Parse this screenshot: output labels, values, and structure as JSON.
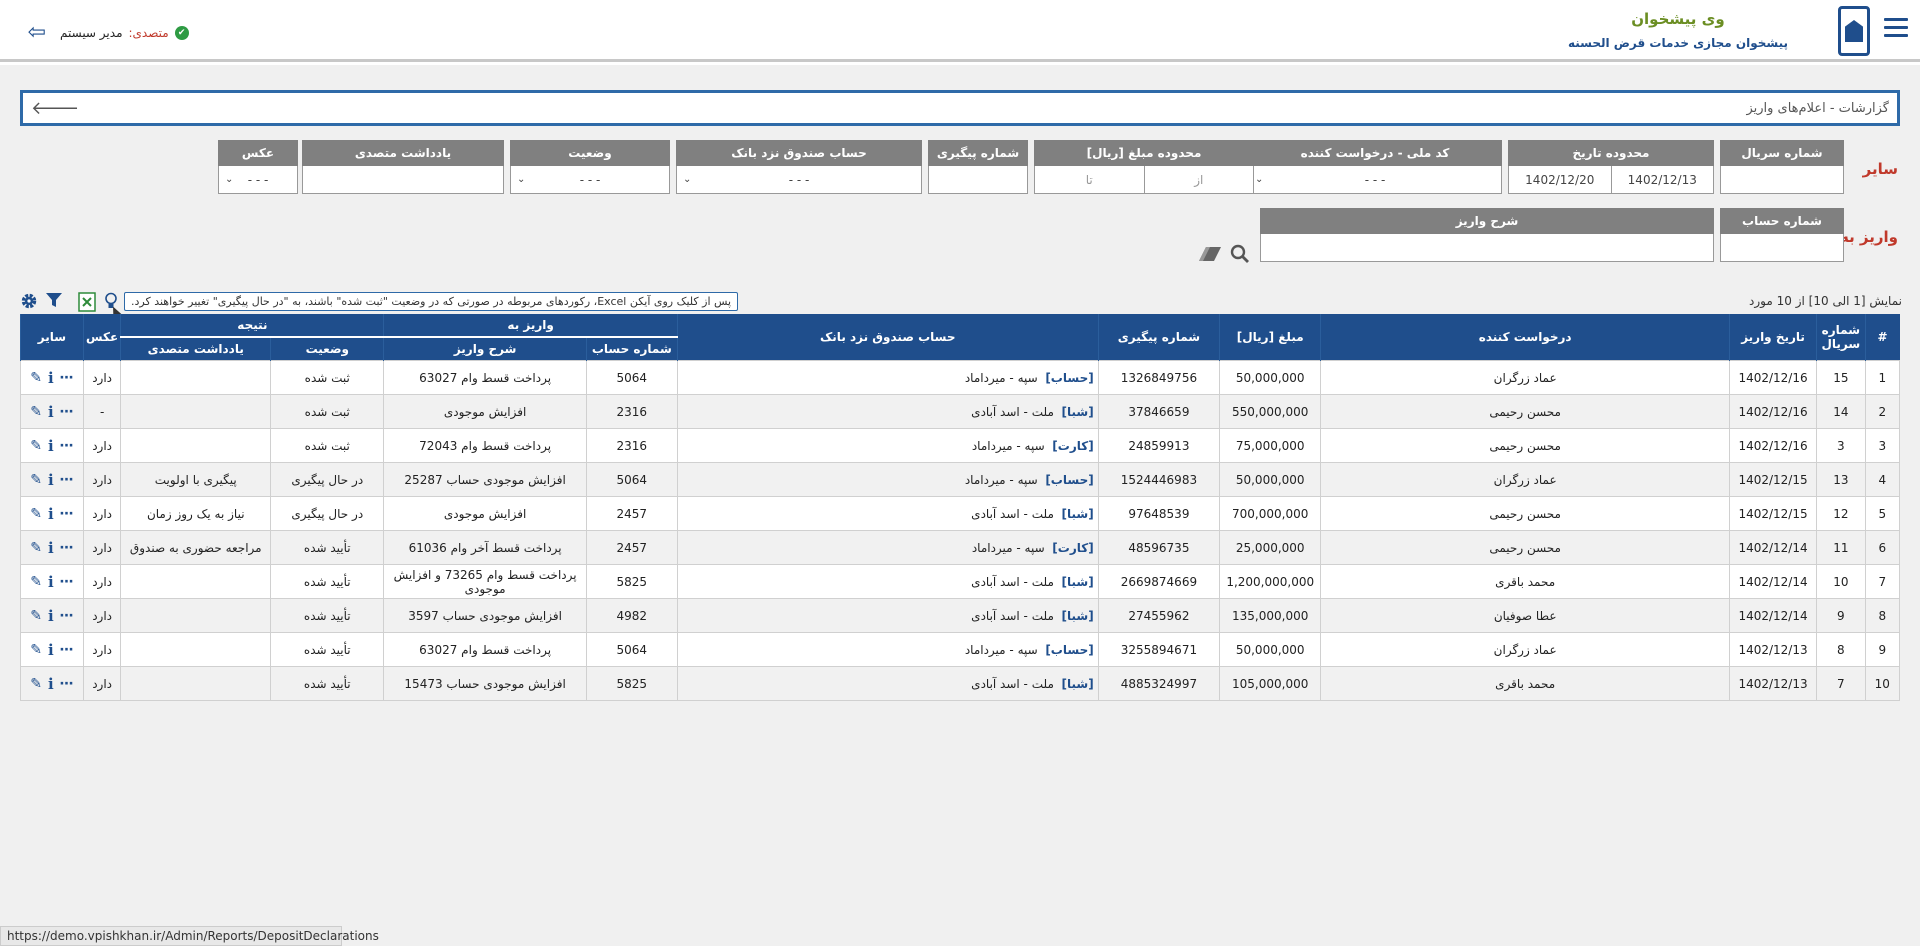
{
  "header": {
    "app_title": "وی پیشخوان",
    "app_subtitle": "پیشخوان مجازی خدمات قرض الحسنه",
    "user_label": "متصدی:",
    "user_name": "مدیر سیستم",
    "check_glyph": "✔",
    "logout_glyph": "⇦",
    "icons": {
      "menu": "hamburger-icon",
      "logo": "bank-phone-logo-icon",
      "logout": "logout-icon"
    }
  },
  "breadcrumb": {
    "text": "گزارشات - اعلام‌های واریز",
    "back_glyph": "🡐"
  },
  "filters": {
    "row1_label": "سایر",
    "row2_label": "واریز به",
    "serial": {
      "label": "شماره سریال",
      "value": ""
    },
    "date_range": {
      "label": "محدوده تاریخ",
      "from": "1402/12/13",
      "to": "1402/12/20"
    },
    "national_code": {
      "label": "کد ملی - درخواست کننده",
      "value": "- - -"
    },
    "amount_range": {
      "label": "محدوده مبلغ [ریال]",
      "from_placeholder": "از",
      "to_placeholder": "تا"
    },
    "tracking": {
      "label": "شماره پیگیری",
      "value": ""
    },
    "bank_account": {
      "label": "حساب صندوق نزد بانک",
      "value": "- - -"
    },
    "status": {
      "label": "وضعیت",
      "value": "- - -"
    },
    "note": {
      "label": "یادداشت متصدی",
      "value": ""
    },
    "photo": {
      "label": "عکس",
      "value": "- - -"
    },
    "account_number": {
      "label": "شماره حساب",
      "value": ""
    },
    "deposit_desc": {
      "label": "شرح واریز",
      "value": ""
    },
    "chevron": "⌄"
  },
  "tools": {
    "count_text": "نمایش [1 الی 10] از 10 مورد",
    "tooltip": "پس از کلیک روی آیکن Excel، رکوردهای مربوطه در صورتی که در وضعیت \"ثبت شده\" باشند، به \"در حال پیگیری\" تغییر خواهند کرد.",
    "icons": {
      "search": "search-icon",
      "eraser": "eraser-icon",
      "excel": "excel-icon",
      "bulb": "lightbulb-icon",
      "filter": "filter-icon",
      "settings": "gear-icon"
    }
  },
  "table": {
    "headers": {
      "hash": "#",
      "serial": "شماره سریال",
      "date": "تاریخ واریز",
      "requester": "درخواست کننده",
      "amount": "مبلغ [ریال]",
      "tracking": "شماره پیگیری",
      "bank": "حساب صندوق نزد بانک",
      "deposit_to": "واریز به",
      "account_no": "شماره حساب",
      "desc": "شرح واریز",
      "result": "نتیجه",
      "status": "وضعیت",
      "note": "یادداشت متصدی",
      "photo": "عکس",
      "other": "سایر"
    },
    "rows": [
      {
        "n": "1",
        "serial": "15",
        "date": "1402/12/16",
        "requester": "عماد زرگران",
        "amount": "50,000,000",
        "tracking": "1326849756",
        "tag": "[حساب]",
        "bank": "سپه - میرداماد",
        "acc": "5064",
        "desc": "پرداخت قسط وام 63027",
        "status": "ثبت شده",
        "note": "",
        "photo": "دارد"
      },
      {
        "n": "2",
        "serial": "14",
        "date": "1402/12/16",
        "requester": "محسن رحیمی",
        "amount": "550,000,000",
        "tracking": "37846659",
        "tag": "[شبا]",
        "bank": "ملت - اسد آبادی",
        "acc": "2316",
        "desc": "افزایش موجودی",
        "status": "ثبت شده",
        "note": "",
        "photo": "-"
      },
      {
        "n": "3",
        "serial": "3",
        "date": "1402/12/16",
        "requester": "محسن رحیمی",
        "amount": "75,000,000",
        "tracking": "24859913",
        "tag": "[کارت]",
        "bank": "سپه - میرداماد",
        "acc": "2316",
        "desc": "پرداخت قسط وام 72043",
        "status": "ثبت شده",
        "note": "",
        "photo": "دارد"
      },
      {
        "n": "4",
        "serial": "13",
        "date": "1402/12/15",
        "requester": "عماد زرگران",
        "amount": "50,000,000",
        "tracking": "1524446983",
        "tag": "[حساب]",
        "bank": "سپه - میرداماد",
        "acc": "5064",
        "desc": "افزایش موجودی حساب 25287",
        "status": "در حال پیگیری",
        "note": "پیگیری با اولویت",
        "photo": "دارد"
      },
      {
        "n": "5",
        "serial": "12",
        "date": "1402/12/15",
        "requester": "محسن رحیمی",
        "amount": "700,000,000",
        "tracking": "97648539",
        "tag": "[شبا]",
        "bank": "ملت - اسد آبادی",
        "acc": "2457",
        "desc": "افزایش موجودی",
        "status": "در حال پیگیری",
        "note": "نیاز به یک روز زمان",
        "photo": "دارد"
      },
      {
        "n": "6",
        "serial": "11",
        "date": "1402/12/14",
        "requester": "محسن رحیمی",
        "amount": "25,000,000",
        "tracking": "48596735",
        "tag": "[کارت]",
        "bank": "سپه - میرداماد",
        "acc": "2457",
        "desc": "پرداخت قسط آخر وام 61036",
        "status": "تأیید شده",
        "note": "مراجعه حضوری به صندوق",
        "photo": "دارد"
      },
      {
        "n": "7",
        "serial": "10",
        "date": "1402/12/14",
        "requester": "محمد باقری",
        "amount": "1,200,000,000",
        "tracking": "2669874669",
        "tag": "[شبا]",
        "bank": "ملت - اسد آبادی",
        "acc": "5825",
        "desc": "پرداخت قسط وام 73265 و افزایش موجودی",
        "status": "تأیید شده",
        "note": "",
        "photo": "دارد"
      },
      {
        "n": "8",
        "serial": "9",
        "date": "1402/12/14",
        "requester": "عطا صوفیان",
        "amount": "135,000,000",
        "tracking": "27455962",
        "tag": "[شبا]",
        "bank": "ملت - اسد آبادی",
        "acc": "4982",
        "desc": "افزایش موجودی حساب 3597",
        "status": "تأیید شده",
        "note": "",
        "photo": "دارد"
      },
      {
        "n": "9",
        "serial": "8",
        "date": "1402/12/13",
        "requester": "عماد زرگران",
        "amount": "50,000,000",
        "tracking": "3255894671",
        "tag": "[حساب]",
        "bank": "سپه - میرداماد",
        "acc": "5064",
        "desc": "پرداخت قسط وام 63027",
        "status": "تأیید شده",
        "note": "",
        "photo": "دارد"
      },
      {
        "n": "10",
        "serial": "7",
        "date": "1402/12/13",
        "requester": "محمد باقری",
        "amount": "105,000,000",
        "tracking": "4885324997",
        "tag": "[شبا]",
        "bank": "ملت - اسد آبادی",
        "acc": "5825",
        "desc": "افزایش موجودی حساب 15473",
        "status": "تأیید شده",
        "note": "",
        "photo": "دارد"
      }
    ]
  },
  "statusbar": {
    "url": "https://demo.vpishkhan.ir/Admin/Reports/DepositDeclarations"
  }
}
